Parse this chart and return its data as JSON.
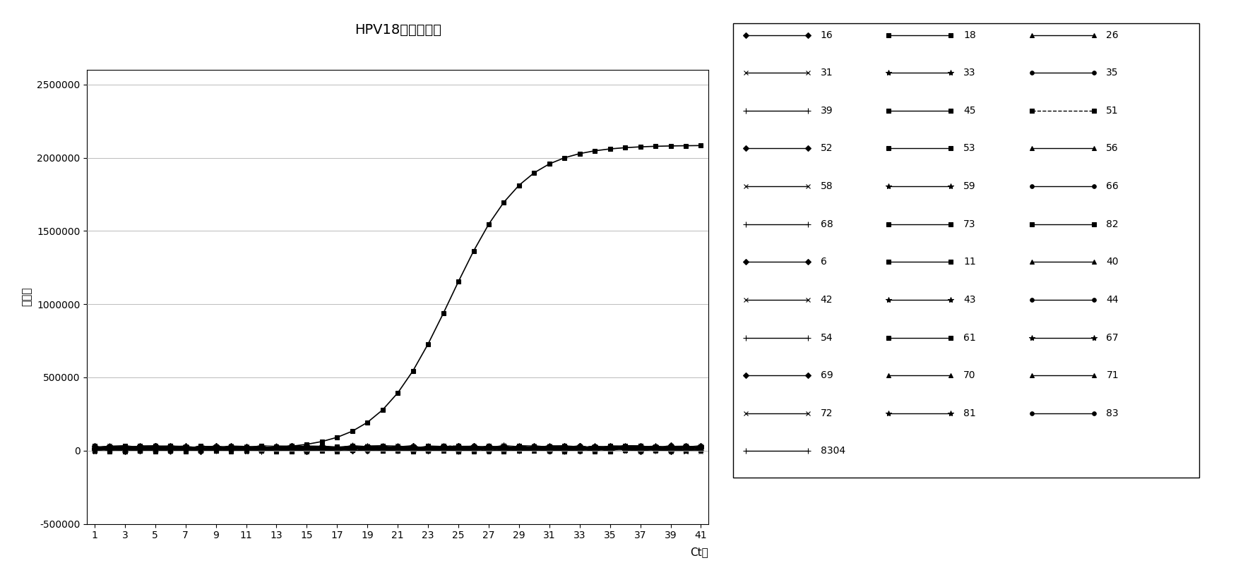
{
  "title": "HPV18型探针试验",
  "ylabel": "荧光値",
  "xlabel": "Ct値",
  "xlim": [
    0.5,
    41.5
  ],
  "ylim": [
    -500000,
    2600000
  ],
  "yticks": [
    -500000,
    0,
    500000,
    1000000,
    1500000,
    2000000,
    2500000
  ],
  "ytick_labels": [
    "-500000",
    "0",
    "500000",
    "1000000",
    "1500000",
    "2000000",
    "2500000"
  ],
  "xticks": [
    1,
    3,
    5,
    7,
    9,
    11,
    13,
    15,
    17,
    19,
    21,
    23,
    25,
    27,
    29,
    31,
    33,
    35,
    37,
    39,
    41
  ],
  "sigmoid_x0": 24.5,
  "sigmoid_k": 0.42,
  "sigmoid_ymax": 2080000,
  "sigmoid_ymin": 5000,
  "flat_noise_max": 35000,
  "flat_noise_min": -5000,
  "legend_rows": [
    [
      {
        "label": "16",
        "marker": "D",
        "ls": "-"
      },
      {
        "label": "18",
        "marker": "s",
        "ls": "-"
      },
      {
        "label": "26",
        "marker": "^",
        "ls": "-"
      }
    ],
    [
      {
        "label": "31",
        "marker": "x",
        "ls": "-"
      },
      {
        "label": "33",
        "marker": "*",
        "ls": "-"
      },
      {
        "label": "35",
        "marker": "o",
        "ls": "-"
      }
    ],
    [
      {
        "label": "39",
        "marker": "+",
        "ls": "-"
      },
      {
        "label": "45",
        "marker": "s",
        "ls": "-"
      },
      {
        "label": "51",
        "marker": "s",
        "ls": "--"
      }
    ],
    [
      {
        "label": "52",
        "marker": "D",
        "ls": "-"
      },
      {
        "label": "53",
        "marker": "s",
        "ls": "-"
      },
      {
        "label": "56",
        "marker": "^",
        "ls": "-"
      }
    ],
    [
      {
        "label": "58",
        "marker": "x",
        "ls": "-"
      },
      {
        "label": "59",
        "marker": "*",
        "ls": "-"
      },
      {
        "label": "66",
        "marker": "o",
        "ls": "-"
      }
    ],
    [
      {
        "label": "68",
        "marker": "+",
        "ls": "-"
      },
      {
        "label": "73",
        "marker": "s",
        "ls": "-"
      },
      {
        "label": "82",
        "marker": "s",
        "ls": "-"
      }
    ],
    [
      {
        "label": "6",
        "marker": "D",
        "ls": "-"
      },
      {
        "label": "11",
        "marker": "s",
        "ls": "-"
      },
      {
        "label": "40",
        "marker": "^",
        "ls": "-"
      }
    ],
    [
      {
        "label": "42",
        "marker": "x",
        "ls": "-"
      },
      {
        "label": "43",
        "marker": "*",
        "ls": "-"
      },
      {
        "label": "44",
        "marker": "o",
        "ls": "-"
      }
    ],
    [
      {
        "label": "54",
        "marker": "+",
        "ls": "-"
      },
      {
        "label": "61",
        "marker": "s",
        "ls": "-"
      },
      {
        "label": "67",
        "marker": "*",
        "ls": "-"
      }
    ],
    [
      {
        "label": "69",
        "marker": "D",
        "ls": "-"
      },
      {
        "label": "70",
        "marker": "^",
        "ls": "-"
      },
      {
        "label": "71",
        "marker": "^",
        "ls": "-"
      }
    ],
    [
      {
        "label": "72",
        "marker": "x",
        "ls": "-"
      },
      {
        "label": "81",
        "marker": "*",
        "ls": "-"
      },
      {
        "label": "83",
        "marker": "o",
        "ls": "-"
      }
    ],
    [
      {
        "label": "8304",
        "marker": "+",
        "ls": "-"
      }
    ]
  ],
  "active_series": "18",
  "background_color": "#ffffff",
  "line_color": "#000000",
  "title_fontsize": 14,
  "axis_fontsize": 11,
  "tick_fontsize": 10,
  "legend_fontsize": 10
}
